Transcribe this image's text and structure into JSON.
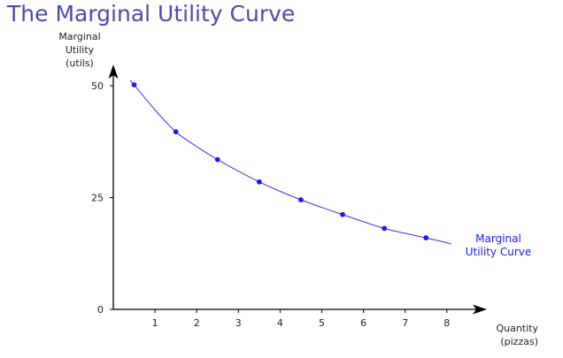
{
  "title": "The Marginal Utility Curve",
  "chart_data": {
    "type": "line",
    "title": "The Marginal Utility Curve",
    "ylabel_lines": [
      "Marginal",
      "Utility",
      "(utils)"
    ],
    "xlabel_lines": [
      "Quantity",
      "(pizzas)"
    ],
    "xlim": [
      0,
      8.5
    ],
    "ylim": [
      0,
      52
    ],
    "x_ticks": [
      1,
      2,
      3,
      4,
      5,
      6,
      7,
      8
    ],
    "y_ticks": [
      0,
      25,
      50
    ],
    "grid": false,
    "series": [
      {
        "name_lines": [
          "Marginal",
          "Utility Curve"
        ],
        "color": "#1a1aee",
        "points": [
          {
            "x": 0.5,
            "y": 50.2
          },
          {
            "x": 1.5,
            "y": 39.7
          },
          {
            "x": 2.5,
            "y": 33.5
          },
          {
            "x": 3.5,
            "y": 28.5
          },
          {
            "x": 4.5,
            "y": 24.5
          },
          {
            "x": 5.5,
            "y": 21.2
          },
          {
            "x": 6.5,
            "y": 18.1
          },
          {
            "x": 7.5,
            "y": 16.0
          }
        ],
        "curve": [
          {
            "x": 0.4,
            "y": 51.2
          },
          {
            "x": 0.5,
            "y": 50.2
          },
          {
            "x": 1.0,
            "y": 44.6
          },
          {
            "x": 1.5,
            "y": 39.7
          },
          {
            "x": 2.0,
            "y": 36.4
          },
          {
            "x": 2.5,
            "y": 33.5
          },
          {
            "x": 3.0,
            "y": 30.9
          },
          {
            "x": 3.5,
            "y": 28.5
          },
          {
            "x": 4.0,
            "y": 26.4
          },
          {
            "x": 4.5,
            "y": 24.5
          },
          {
            "x": 5.0,
            "y": 22.8
          },
          {
            "x": 5.5,
            "y": 21.2
          },
          {
            "x": 6.0,
            "y": 19.6
          },
          {
            "x": 6.5,
            "y": 18.1
          },
          {
            "x": 7.0,
            "y": 17.0
          },
          {
            "x": 7.5,
            "y": 16.0
          },
          {
            "x": 8.0,
            "y": 14.9
          },
          {
            "x": 8.1,
            "y": 14.6
          }
        ]
      }
    ]
  }
}
